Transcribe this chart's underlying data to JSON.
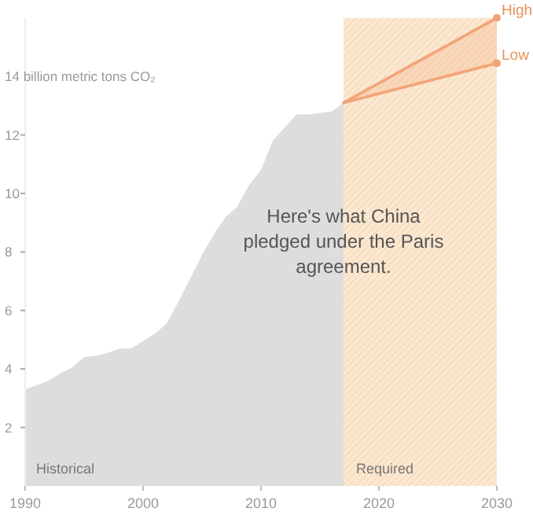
{
  "chart_data": {
    "type": "area",
    "xlim": [
      1990,
      2030
    ],
    "xticks": [
      1990,
      2000,
      2010,
      2020,
      2030
    ],
    "ylim": [
      0,
      16
    ],
    "yticks": [
      2,
      4,
      6,
      8,
      10,
      12,
      {
        "value": 14,
        "label": "14 billion metric tons CO₂"
      }
    ],
    "grid": false,
    "line_style": "solid",
    "series": [
      {
        "name": "Historical",
        "color": "#dddddd",
        "x": [
          1990,
          1991,
          1992,
          1993,
          1994,
          1995,
          1996,
          1997,
          1998,
          1999,
          2000,
          2001,
          2002,
          2003,
          2004,
          2005,
          2006,
          2007,
          2008,
          2009,
          2010,
          2011,
          2012,
          2013,
          2014,
          2015,
          2016,
          2017
        ],
        "values": [
          3.3,
          3.45,
          3.6,
          3.85,
          4.05,
          4.4,
          4.45,
          4.55,
          4.7,
          4.7,
          4.95,
          5.2,
          5.55,
          6.3,
          7.1,
          7.9,
          8.6,
          9.2,
          9.55,
          10.3,
          10.8,
          11.8,
          12.25,
          12.7,
          12.7,
          12.75,
          12.8,
          13.1
        ]
      },
      {
        "name": "High",
        "type": "line",
        "color": "#f2a478",
        "marker": "circle",
        "x": [
          2017,
          2030
        ],
        "values": [
          13.1,
          16.0
        ],
        "lower": [
          13.1,
          14.45
        ],
        "upper": [
          13.1,
          16.0
        ]
      },
      {
        "name": "Low",
        "type": "line",
        "color": "#f2a478",
        "marker": "circle",
        "x": [
          2017,
          2030
        ],
        "values": [
          13.1,
          14.45
        ]
      }
    ],
    "bands": [
      {
        "axis": "x",
        "from": 2017,
        "to": 2030,
        "label": "Required",
        "color": "#fbe8d2"
      }
    ],
    "annotations": [
      "Here's what China pledged under the Paris agreement."
    ]
  }
}
